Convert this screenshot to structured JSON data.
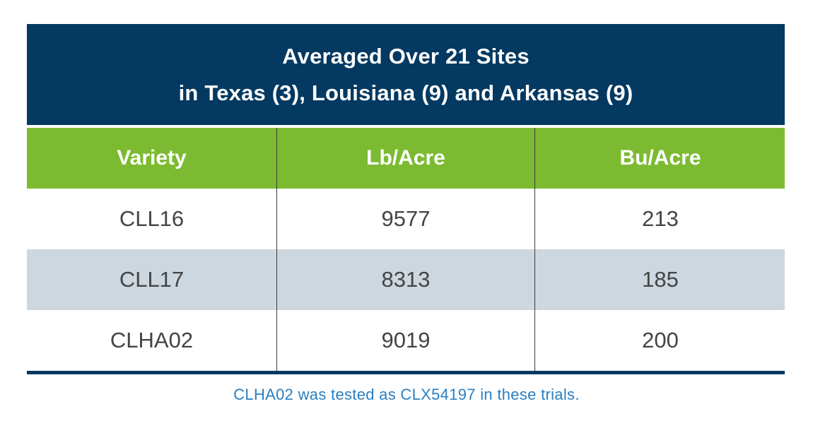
{
  "chart_data": {
    "type": "table",
    "title_line1": "Averaged Over 21 Sites",
    "title_line2": "in Texas (3), Louisiana (9) and Arkansas (9)",
    "columns": [
      "Variety",
      "Lb/Acre",
      "Bu/Acre"
    ],
    "rows": [
      [
        "CLL16",
        "9577",
        "213"
      ],
      [
        "CLL17",
        "8313",
        "185"
      ],
      [
        "CLHA02",
        "9019",
        "200"
      ]
    ],
    "footnote": "CLHA02 was tested as CLX54197 in these trials."
  },
  "colors": {
    "title_bg": "#043961",
    "header_bg": "#7cbb31",
    "stripe_bg": "#cdd7df",
    "footnote_text": "#2a7fc1"
  }
}
